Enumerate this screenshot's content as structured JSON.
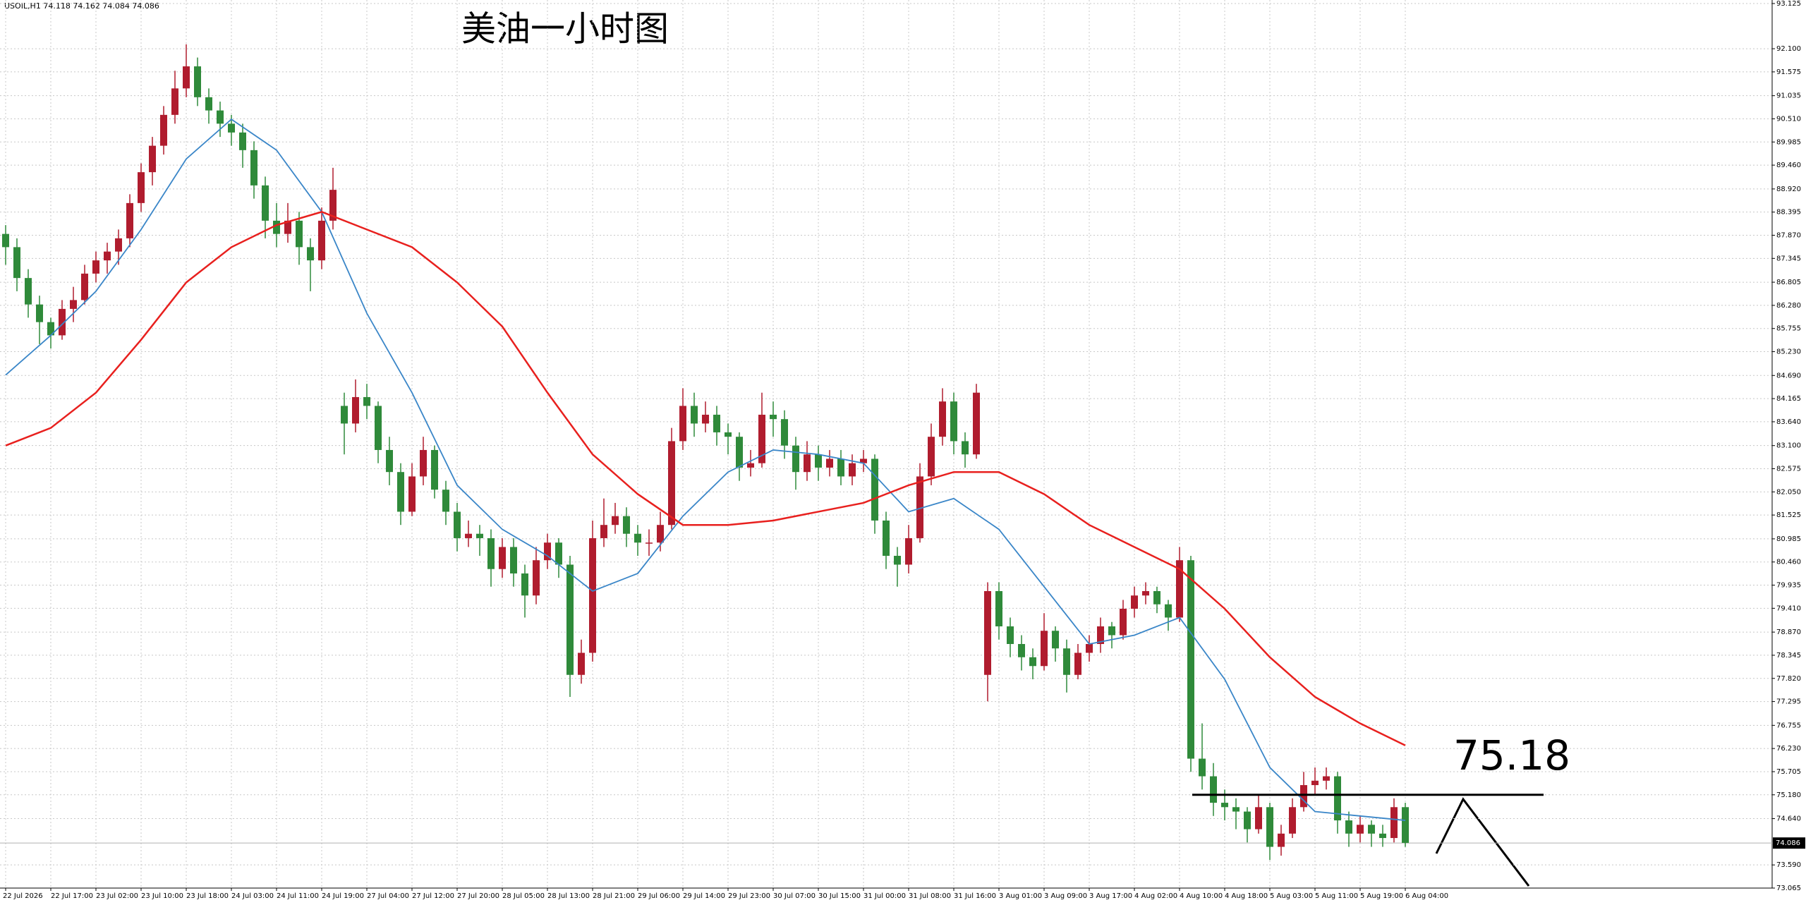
{
  "chart_data": {
    "type": "candlestick",
    "symbol": "USOIL,H1",
    "header_values": [
      74.118,
      74.162,
      74.084,
      74.086
    ],
    "title": "美油一小时图",
    "bull_color": "#b01c2e",
    "bear_color": "#2f8a3a",
    "ylim": [
      73.065,
      93.125
    ],
    "yticks": [
      93.125,
      {
        "value": 92.1,
        "label": "92.100"
      },
      91.575,
      91.035,
      {
        "value": 90.51,
        "label": "90.510"
      },
      89.985,
      {
        "value": 89.46,
        "label": "89.460"
      },
      {
        "value": 88.92,
        "label": "88.920"
      },
      88.395,
      {
        "value": 87.87,
        "label": "87.870"
      },
      87.345,
      86.805,
      {
        "value": 86.28,
        "label": "86.280"
      },
      85.755,
      {
        "value": 85.23,
        "label": "85.230"
      },
      {
        "value": 84.69,
        "label": "84.690"
      },
      84.165,
      {
        "value": 83.64,
        "label": "83.640"
      },
      {
        "value": 83.1,
        "label": "83.100"
      },
      82.575,
      {
        "value": 82.05,
        "label": "82.050"
      },
      81.525,
      80.985,
      {
        "value": 80.46,
        "label": "80.460"
      },
      79.935,
      {
        "value": 79.41,
        "label": "79.410"
      },
      {
        "value": 78.87,
        "label": "78.870"
      },
      78.345,
      {
        "value": 77.82,
        "label": "77.820"
      },
      77.295,
      76.755,
      {
        "value": 76.23,
        "label": "76.230"
      },
      75.705,
      {
        "value": 75.18,
        "label": "75.180"
      },
      {
        "value": 74.64,
        "label": "74.640"
      },
      {
        "value": 73.59,
        "label": "73.590"
      },
      73.065
    ],
    "time_labels": [
      "22 Jul 2026",
      "22 Jul 17:00",
      "23 Jul 02:00",
      "23 Jul 10:00",
      "23 Jul 18:00",
      "24 Jul 03:00",
      "24 Jul 11:00",
      "24 Jul 19:00",
      "27 Jul 04:00",
      "27 Jul 12:00",
      "27 Jul 20:00",
      "28 Jul 05:00",
      "28 Jul 13:00",
      "28 Jul 21:00",
      "29 Jul 06:00",
      "29 Jul 14:00",
      "29 Jul 23:00",
      "30 Jul 07:00",
      "30 Jul 15:00",
      "31 Jul 00:00",
      "31 Jul 08:00",
      "31 Jul 16:00",
      "3 Aug 01:00",
      "3 Aug 09:00",
      "3 Aug 17:00",
      "4 Aug 02:00",
      "4 Aug 10:00",
      "4 Aug 18:00",
      "5 Aug 03:00",
      "5 Aug 11:00",
      "5 Aug 19:00",
      "6 Aug 04:00"
    ],
    "current_price": 74.086,
    "annotation": 75.18,
    "ohlc": [
      [
        87.9,
        88.1,
        87.2,
        87.6
      ],
      [
        87.6,
        87.8,
        86.6,
        86.9
      ],
      [
        86.9,
        87.1,
        86.0,
        86.3
      ],
      [
        86.3,
        86.5,
        85.4,
        85.9
      ],
      [
        85.9,
        86.0,
        85.3,
        85.6
      ],
      [
        85.6,
        86.4,
        85.5,
        86.2
      ],
      [
        86.2,
        86.7,
        85.9,
        86.4
      ],
      [
        86.4,
        87.2,
        86.3,
        87.0
      ],
      [
        87.0,
        87.5,
        86.8,
        87.3
      ],
      [
        87.3,
        87.7,
        87.0,
        87.5
      ],
      [
        87.5,
        88.0,
        87.2,
        87.8
      ],
      [
        87.8,
        88.8,
        87.6,
        88.6
      ],
      [
        88.6,
        89.5,
        88.4,
        89.3
      ],
      [
        89.3,
        90.1,
        89.0,
        89.9
      ],
      [
        89.9,
        90.8,
        89.7,
        90.6
      ],
      [
        90.6,
        91.6,
        90.4,
        91.2
      ],
      [
        91.2,
        92.2,
        91.0,
        91.7
      ],
      [
        91.7,
        91.9,
        90.8,
        91.0
      ],
      [
        91.0,
        91.2,
        90.4,
        90.7
      ],
      [
        90.7,
        90.9,
        90.1,
        90.4
      ],
      [
        90.4,
        90.6,
        89.9,
        90.2
      ],
      [
        90.2,
        90.4,
        89.4,
        89.8
      ],
      [
        89.8,
        90.0,
        88.7,
        89.0
      ],
      [
        89.0,
        89.2,
        87.8,
        88.2
      ],
      [
        88.2,
        88.6,
        87.6,
        87.9
      ],
      [
        87.9,
        88.6,
        87.7,
        88.2
      ],
      [
        88.2,
        88.4,
        87.2,
        87.6
      ],
      [
        87.6,
        87.8,
        86.6,
        87.3
      ],
      [
        87.3,
        88.5,
        87.1,
        88.2
      ],
      [
        88.2,
        89.4,
        88.0,
        88.9
      ],
      [
        84.0,
        84.3,
        82.9,
        83.6
      ],
      [
        83.6,
        84.6,
        83.4,
        84.2
      ],
      [
        84.2,
        84.5,
        83.7,
        84.0
      ],
      [
        84.0,
        84.1,
        82.7,
        83.0
      ],
      [
        83.0,
        83.3,
        82.2,
        82.5
      ],
      [
        82.5,
        82.7,
        81.3,
        81.6
      ],
      [
        81.6,
        82.7,
        81.5,
        82.4
      ],
      [
        82.4,
        83.3,
        82.2,
        83.0
      ],
      [
        83.0,
        83.1,
        81.9,
        82.1
      ],
      [
        82.1,
        82.3,
        81.3,
        81.6
      ],
      [
        81.6,
        81.8,
        80.7,
        81.0
      ],
      [
        81.0,
        81.4,
        80.8,
        81.1
      ],
      [
        81.1,
        81.3,
        80.6,
        81.0
      ],
      [
        81.0,
        81.2,
        79.9,
        80.3
      ],
      [
        80.3,
        81.0,
        80.1,
        80.8
      ],
      [
        80.8,
        81.0,
        79.9,
        80.2
      ],
      [
        80.2,
        80.4,
        79.2,
        79.7
      ],
      [
        79.7,
        80.8,
        79.5,
        80.5
      ],
      [
        80.5,
        81.1,
        80.3,
        80.9
      ],
      [
        80.9,
        81.0,
        80.1,
        80.4
      ],
      [
        80.4,
        80.6,
        77.4,
        77.9
      ],
      [
        77.9,
        78.7,
        77.7,
        78.4
      ],
      [
        78.4,
        81.4,
        78.2,
        81.0
      ],
      [
        81.0,
        81.9,
        80.8,
        81.3
      ],
      [
        81.3,
        81.8,
        81.1,
        81.5
      ],
      [
        81.5,
        81.7,
        80.8,
        81.1
      ],
      [
        81.1,
        81.3,
        80.6,
        80.9
      ],
      [
        80.9,
        81.2,
        80.6,
        80.9
      ],
      [
        80.9,
        81.6,
        80.7,
        81.3
      ],
      [
        81.3,
        83.5,
        81.2,
        83.2
      ],
      [
        83.2,
        84.4,
        83.0,
        84.0
      ],
      [
        84.0,
        84.3,
        83.3,
        83.6
      ],
      [
        83.6,
        84.1,
        83.4,
        83.8
      ],
      [
        83.8,
        84.0,
        83.1,
        83.4
      ],
      [
        83.4,
        83.6,
        82.9,
        83.3
      ],
      [
        83.3,
        83.4,
        82.3,
        82.6
      ],
      [
        82.6,
        83.0,
        82.4,
        82.7
      ],
      [
        82.7,
        84.3,
        82.6,
        83.8
      ],
      [
        83.8,
        84.1,
        83.3,
        83.7
      ],
      [
        83.7,
        83.9,
        82.8,
        83.1
      ],
      [
        83.1,
        83.3,
        82.1,
        82.5
      ],
      [
        82.5,
        83.2,
        82.3,
        82.9
      ],
      [
        82.9,
        83.1,
        82.3,
        82.6
      ],
      [
        82.6,
        83.0,
        82.4,
        82.8
      ],
      [
        82.8,
        83.0,
        82.2,
        82.4
      ],
      [
        82.4,
        82.9,
        82.2,
        82.7
      ],
      [
        82.7,
        83.0,
        82.5,
        82.8
      ],
      [
        82.8,
        82.9,
        81.1,
        81.4
      ],
      [
        81.4,
        81.6,
        80.3,
        80.6
      ],
      [
        80.6,
        80.8,
        79.9,
        80.4
      ],
      [
        80.4,
        81.3,
        80.2,
        81.0
      ],
      [
        81.0,
        82.7,
        80.9,
        82.4
      ],
      [
        82.4,
        83.6,
        82.2,
        83.3
      ],
      [
        83.3,
        84.4,
        83.1,
        84.1
      ],
      [
        84.1,
        84.3,
        82.9,
        83.2
      ],
      [
        83.2,
        83.4,
        82.6,
        82.9
      ],
      [
        82.9,
        84.5,
        82.8,
        84.3
      ],
      [
        77.9,
        80.0,
        77.3,
        79.8
      ],
      [
        79.8,
        80.0,
        78.7,
        79.0
      ],
      [
        79.0,
        79.2,
        78.3,
        78.6
      ],
      [
        78.6,
        78.8,
        78.0,
        78.3
      ],
      [
        78.3,
        78.5,
        77.8,
        78.1
      ],
      [
        78.1,
        79.3,
        78.0,
        78.9
      ],
      [
        78.9,
        79.0,
        78.2,
        78.5
      ],
      [
        78.5,
        78.7,
        77.5,
        77.9
      ],
      [
        77.9,
        78.6,
        77.8,
        78.4
      ],
      [
        78.4,
        78.8,
        78.2,
        78.6
      ],
      [
        78.6,
        79.2,
        78.4,
        79.0
      ],
      [
        79.0,
        79.1,
        78.5,
        78.8
      ],
      [
        78.8,
        79.6,
        78.7,
        79.4
      ],
      [
        79.4,
        79.9,
        79.2,
        79.7
      ],
      [
        79.7,
        80.0,
        79.5,
        79.8
      ],
      [
        79.8,
        79.9,
        79.3,
        79.5
      ],
      [
        79.5,
        79.6,
        78.9,
        79.2
      ],
      [
        79.2,
        80.8,
        79.1,
        80.5
      ],
      [
        80.5,
        80.6,
        75.7,
        76.0
      ],
      [
        76.0,
        76.8,
        75.3,
        75.6
      ],
      [
        75.6,
        75.9,
        74.7,
        75.0
      ],
      [
        75.0,
        75.3,
        74.6,
        74.9
      ],
      [
        74.9,
        75.1,
        74.4,
        74.8
      ],
      [
        74.8,
        74.9,
        74.1,
        74.4
      ],
      [
        74.4,
        75.2,
        74.3,
        74.9
      ],
      [
        74.9,
        75.0,
        73.7,
        74.0
      ],
      [
        74.0,
        74.5,
        73.8,
        74.3
      ],
      [
        74.3,
        75.1,
        74.2,
        74.9
      ],
      [
        74.9,
        75.7,
        74.8,
        75.4
      ],
      [
        75.4,
        75.8,
        75.2,
        75.5
      ],
      [
        75.5,
        75.8,
        75.3,
        75.6
      ],
      [
        75.6,
        75.7,
        74.3,
        74.6
      ],
      [
        74.6,
        74.8,
        74.0,
        74.3
      ],
      [
        74.3,
        74.7,
        74.1,
        74.5
      ],
      [
        74.5,
        74.6,
        74.0,
        74.3
      ],
      [
        74.3,
        74.5,
        74.0,
        74.2
      ],
      [
        74.2,
        75.1,
        74.1,
        74.9
      ],
      [
        74.9,
        75.0,
        74.0,
        74.09
      ]
    ],
    "series": [
      {
        "color": "#3a86c8",
        "x": [
          0,
          4,
          8,
          12,
          16,
          20,
          24,
          28,
          32,
          36,
          40,
          44,
          48,
          52,
          56,
          60,
          64,
          68,
          72,
          76,
          80,
          84,
          88,
          92,
          96,
          100,
          104,
          108,
          112,
          116,
          120,
          124
        ],
        "values": [
          84.7,
          85.6,
          86.6,
          88.0,
          89.6,
          90.5,
          89.8,
          88.4,
          86.1,
          84.3,
          82.2,
          81.2,
          80.6,
          79.8,
          80.2,
          81.5,
          82.5,
          83.0,
          82.9,
          82.7,
          81.6,
          81.9,
          81.2,
          79.9,
          78.6,
          78.8,
          79.2,
          77.8,
          75.8,
          74.8,
          74.7,
          74.6
        ]
      },
      {
        "color": "#e8201e",
        "x": [
          0,
          4,
          8,
          12,
          16,
          20,
          24,
          28,
          32,
          36,
          40,
          44,
          48,
          52,
          56,
          60,
          64,
          68,
          72,
          76,
          80,
          84,
          88,
          92,
          96,
          100,
          104,
          108,
          112,
          116,
          120,
          124
        ],
        "values": [
          83.1,
          83.5,
          84.3,
          85.5,
          86.8,
          87.6,
          88.1,
          88.4,
          88.0,
          87.6,
          86.8,
          85.8,
          84.3,
          82.9,
          82.0,
          81.3,
          81.3,
          81.4,
          81.6,
          81.8,
          82.2,
          82.5,
          82.5,
          82.0,
          81.3,
          80.8,
          80.3,
          79.4,
          78.3,
          77.4,
          76.8,
          76.3
        ]
      }
    ]
  }
}
